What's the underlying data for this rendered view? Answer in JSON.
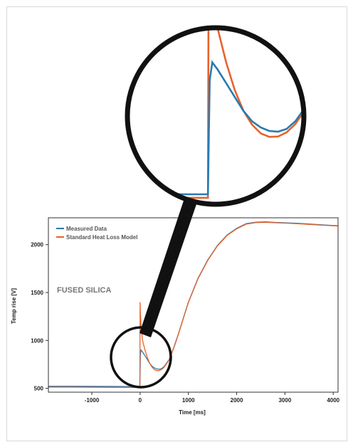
{
  "chart_data": {
    "type": "line",
    "title": "",
    "xlabel": "Time [ms]",
    "ylabel": "Temp rise [V]",
    "xlim": [
      -1900,
      4100
    ],
    "ylim": [
      460,
      2280
    ],
    "xticks": [
      -1000,
      0,
      1000,
      2000,
      3000,
      4000
    ],
    "yticks": [
      500,
      1000,
      1500,
      2000
    ],
    "xtick_labels": [
      "-1000",
      "0",
      "1000",
      "2000",
      "3000",
      "4000"
    ],
    "ytick_labels": [
      "500",
      "1000",
      "1500",
      "2000"
    ],
    "annotation": "FUSED SILICA",
    "legend_position": "top-left",
    "grid": false,
    "inset": "magnified view of the pulse region around t = 0",
    "series": [
      {
        "name": "Measured Data",
        "color": "#2a7ab0",
        "x": [
          -1900,
          -1500,
          -1000,
          -500,
          -100,
          -5,
          0,
          5,
          20,
          50,
          100,
          150,
          200,
          250,
          300,
          350,
          400,
          450,
          500,
          600,
          700,
          800,
          900,
          1000,
          1200,
          1400,
          1600,
          1800,
          2000,
          2200,
          2400,
          2600,
          2800,
          3000,
          3200,
          3400,
          3600,
          3800,
          4000,
          4100
        ],
        "y": [
          522,
          522,
          521,
          520,
          519,
          519,
          700,
          850,
          900,
          880,
          840,
          800,
          760,
          730,
          712,
          702,
          700,
          708,
          730,
          800,
          930,
          1080,
          1240,
          1400,
          1650,
          1840,
          1990,
          2100,
          2170,
          2220,
          2235,
          2238,
          2232,
          2228,
          2224,
          2218,
          2212,
          2206,
          2200,
          2197
        ]
      },
      {
        "name": "Standard Heat Loss Model",
        "color": "#e8622a",
        "x": [
          -1900,
          -1500,
          -1000,
          -500,
          -100,
          -5,
          0,
          5,
          20,
          50,
          100,
          150,
          200,
          250,
          300,
          350,
          400,
          450,
          500,
          600,
          700,
          800,
          900,
          1000,
          1200,
          1400,
          1600,
          1800,
          2000,
          2200,
          2400,
          2600,
          2800,
          3000,
          3200,
          3400,
          3600,
          3800,
          4000,
          4100
        ],
        "y": [
          512,
          512,
          511,
          510,
          509,
          509,
          1400,
          1300,
          1150,
          1000,
          900,
          820,
          760,
          720,
          695,
          685,
          686,
          698,
          722,
          795,
          925,
          1075,
          1235,
          1395,
          1645,
          1835,
          1985,
          2095,
          2165,
          2215,
          2230,
          2233,
          2228,
          2224,
          2220,
          2214,
          2208,
          2202,
          2197,
          2194
        ]
      }
    ]
  }
}
